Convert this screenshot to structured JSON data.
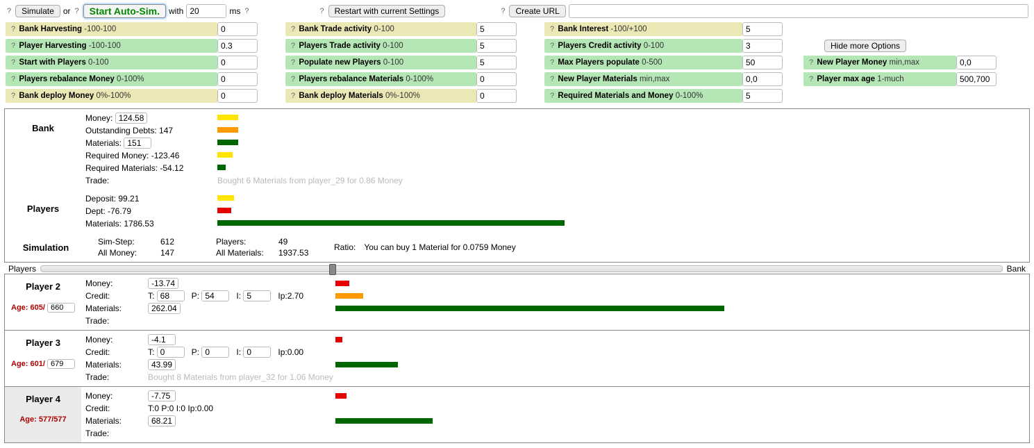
{
  "colors": {
    "yellow": "#ffe500",
    "orange": "#ff9900",
    "darkgreen": "#006600",
    "red": "#e60000",
    "label_yellow_bg": "#ece8b6",
    "label_green_bg": "#b5e6b5",
    "slider_thumb": "#888888",
    "border": "#888888"
  },
  "top": {
    "simulate": "Simulate",
    "or": "or",
    "auto_sim": "Start Auto-Sim.",
    "with": "with",
    "ms": "ms",
    "ms_value": "20",
    "restart": "Restart with current Settings",
    "create_url": "Create URL",
    "create_url_value": "",
    "hide_more": "Hide more Options"
  },
  "params": [
    {
      "row": 0,
      "col": 0,
      "bg": "yellowish",
      "label": "Bank Harvesting",
      "range": "-100-100",
      "value": "0"
    },
    {
      "row": 0,
      "col": 1,
      "bg": "yellowish",
      "label": "Bank Trade activity",
      "range": "0-100",
      "value": "5"
    },
    {
      "row": 0,
      "col": 2,
      "bg": "yellowish",
      "label": "Bank Interest",
      "range": "-100/+100",
      "value": "5"
    },
    {
      "row": 0,
      "col": 3,
      "bg": "",
      "label": "",
      "range": "",
      "value": ""
    },
    {
      "row": 1,
      "col": 0,
      "bg": "greenish",
      "label": "Player Harvesting",
      "range": "-100-100",
      "value": "0.3"
    },
    {
      "row": 1,
      "col": 1,
      "bg": "greenish",
      "label": "Players Trade activity",
      "range": "0-100",
      "value": "5"
    },
    {
      "row": 1,
      "col": 2,
      "bg": "greenish",
      "label": "Players Credit activity",
      "range": "0-100",
      "value": "3"
    },
    {
      "row": 1,
      "col": 3,
      "bg": "",
      "label": "",
      "range": "",
      "value": ""
    },
    {
      "row": 2,
      "col": 0,
      "bg": "greenish",
      "label": "Start with Players",
      "range": "0-100",
      "value": "0"
    },
    {
      "row": 2,
      "col": 1,
      "bg": "greenish",
      "label": "Populate new Players",
      "range": "0-100",
      "value": "5"
    },
    {
      "row": 2,
      "col": 2,
      "bg": "greenish",
      "label": "Max Players populate",
      "range": "0-500",
      "value": "50"
    },
    {
      "row": 2,
      "col": 3,
      "bg": "greenish",
      "label": "New Player Money",
      "range": "min,max",
      "value": "0,0"
    },
    {
      "row": 3,
      "col": 0,
      "bg": "greenish",
      "label": "Players rebalance Money",
      "range": "0-100%",
      "value": "0"
    },
    {
      "row": 3,
      "col": 1,
      "bg": "greenish",
      "label": "Players rebalance Materials",
      "range": "0-100%",
      "value": "0"
    },
    {
      "row": 3,
      "col": 2,
      "bg": "greenish",
      "label": "New Player Materials",
      "range": "min,max",
      "value": "0,0"
    },
    {
      "row": 3,
      "col": 3,
      "bg": "greenish",
      "label": "Player max age",
      "range": "1-much",
      "value": "500,700"
    },
    {
      "row": 4,
      "col": 0,
      "bg": "yellowish",
      "label": "Bank deploy Money",
      "range": "0%-100%",
      "value": "0"
    },
    {
      "row": 4,
      "col": 1,
      "bg": "yellowish",
      "label": "Bank deploy Materials",
      "range": "0%-100%",
      "value": "0"
    },
    {
      "row": 4,
      "col": 2,
      "bg": "greenish",
      "label": "Required Materials and Money",
      "range": "0-100%",
      "value": "5"
    },
    {
      "row": 4,
      "col": 3,
      "bg": "",
      "label": "",
      "range": "",
      "value": ""
    }
  ],
  "bank": {
    "title": "Bank",
    "money_label": "Money:",
    "money": "124.58",
    "money_bar_w": 30,
    "money_bar_color": "bar-yellow",
    "debts_label": "Outstanding Debts: 147",
    "debts_bar_w": 30,
    "debts_bar_color": "bar-orange",
    "materials_label": "Materials:",
    "materials": "151",
    "materials_bar_w": 30,
    "materials_bar_color": "bar-darkgreen",
    "req_money_label": "Required Money: -123.46",
    "req_money_bar_w": 22,
    "req_money_bar_color": "bar-yellow",
    "req_materials_label": "Required Materials: -54.12",
    "req_materials_bar_w": 12,
    "req_materials_bar_color": "bar-darkgreen",
    "trade_label": "Trade:",
    "trade_text": "Bought 6 Materials from player_29 for 0.86 Money"
  },
  "players_agg": {
    "title": "Players",
    "deposit_label": "Deposit: 99.21",
    "deposit_bar_w": 24,
    "deposit_bar_color": "bar-yellow",
    "dept_label": "Dept: -76.79",
    "dept_bar_w": 20,
    "dept_bar_color": "bar-red",
    "materials_label": "Materials: 1786.53",
    "materials_bar_w": 500,
    "materials_bar_color": "bar-darkgreen"
  },
  "simulation": {
    "title": "Simulation",
    "sim_step_label": "Sim-Step:",
    "sim_step": "612",
    "all_money_label": "All Money:",
    "all_money": "147",
    "players_label": "Players:",
    "players": "49",
    "all_materials_label": "All Materials:",
    "all_materials": "1937.53",
    "ratio_label": "Ratio:",
    "ratio_text": "You can buy 1 Material for 0.0759 Money"
  },
  "slider": {
    "left": "Players",
    "right": "Bank",
    "thumb_pct": 30
  },
  "player_list": [
    {
      "name": "Player 2",
      "age_label": "Age: 605/",
      "age_box": "660",
      "selected": false,
      "money_label": "Money:",
      "money": "-13.74",
      "money_bar_w": 20,
      "money_bar_color": "bar-red",
      "credit_label": "Credit:",
      "credit_T": "68",
      "credit_P": "54",
      "credit_I": "5",
      "credit_Ip": "Ip:2.70",
      "credit_bar_w": 40,
      "credit_bar_color": "bar-orange",
      "materials_label": "Materials:",
      "materials": "262.04",
      "materials_bar_w": 560,
      "materials_bar_color": "bar-darkgreen",
      "trade_label": "Trade:",
      "trade_text": ""
    },
    {
      "name": "Player 3",
      "age_label": "Age: 601/",
      "age_box": "679",
      "selected": false,
      "money_label": "Money:",
      "money": "-4.1",
      "money_bar_w": 10,
      "money_bar_color": "bar-red",
      "credit_label": "Credit:",
      "credit_T": "0",
      "credit_P": "0",
      "credit_I": "0",
      "credit_Ip": "Ip:0.00",
      "credit_bar_w": 0,
      "credit_bar_color": "bar-orange",
      "materials_label": "Materials:",
      "materials": "43.99",
      "materials_bar_w": 90,
      "materials_bar_color": "bar-darkgreen",
      "trade_label": "Trade:",
      "trade_text": "Bought 8 Materials from player_32 for 1.06 Money"
    },
    {
      "name": "Player 4",
      "age_label": "Age: 577/577",
      "age_box": "",
      "selected": true,
      "money_label": "Money:",
      "money": "-7.75",
      "money_bar_w": 16,
      "money_bar_color": "bar-red",
      "credit_label": "Credit:",
      "credit_text": "T:0 P:0 I:0 Ip:0.00",
      "credit_bar_w": 0,
      "credit_bar_color": "bar-orange",
      "materials_label": "Materials:",
      "materials": "68.21",
      "materials_bar_w": 140,
      "materials_bar_color": "bar-darkgreen",
      "trade_label": "Trade:",
      "trade_text": ""
    }
  ]
}
